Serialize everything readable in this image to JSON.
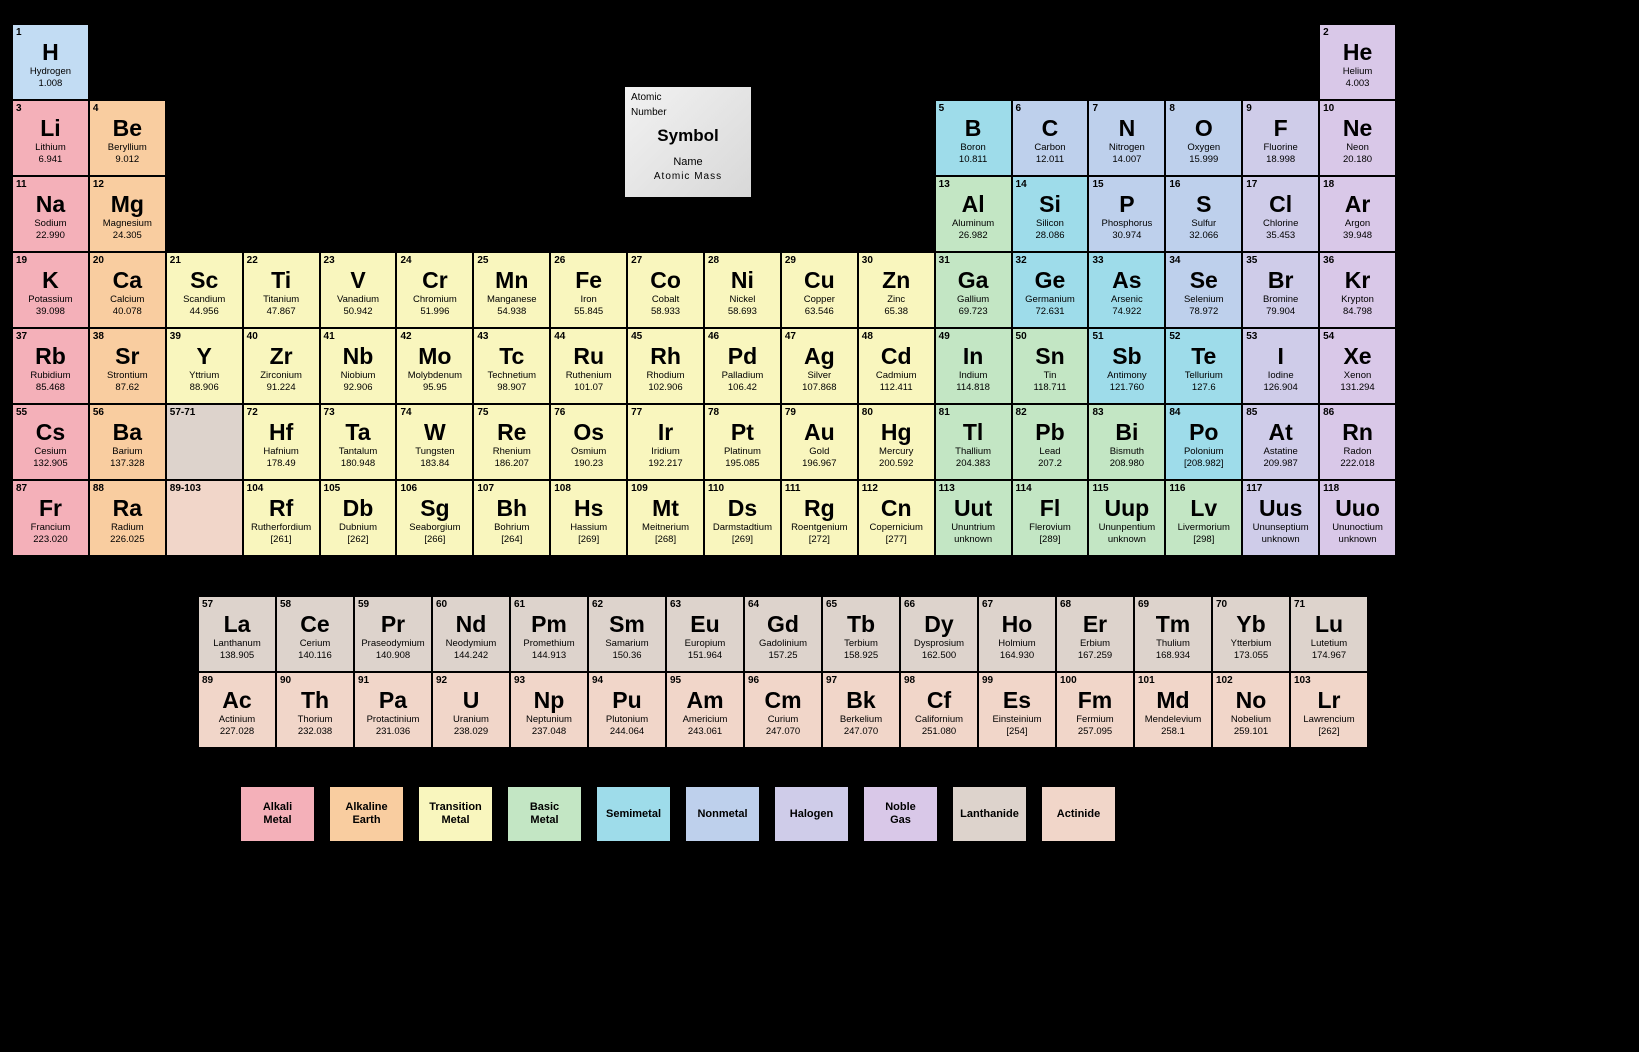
{
  "key_box": {
    "num": "Atomic",
    "num2": "Number",
    "sym": "Symbol",
    "name": "Name",
    "mass": "Atomic  Mass"
  },
  "cell_colors": {
    "diatomic_h": "#c2dcf3",
    "alkali": "#f4b0b9",
    "alkaline": "#f9cda0",
    "transition": "#f9f6be",
    "basic": "#c3e6c4",
    "semimetal": "#9edcea",
    "nonmetal": "#bed0ec",
    "halogen": "#cfcce9",
    "noble": "#d9c8e8",
    "lanthanide": "#ddd3cc",
    "actinide": "#f1d6c9",
    "empty": "transparent"
  },
  "legend": [
    {
      "label": "Alkali\nMetal",
      "cat": "alkali"
    },
    {
      "label": "Alkaline\nEarth",
      "cat": "alkaline"
    },
    {
      "label": "Transition\nMetal",
      "cat": "transition"
    },
    {
      "label": "Basic\nMetal",
      "cat": "basic"
    },
    {
      "label": "Semimetal",
      "cat": "semimetal"
    },
    {
      "label": "Nonmetal",
      "cat": "nonmetal"
    },
    {
      "label": "Halogen",
      "cat": "halogen"
    },
    {
      "label": "Noble\nGas",
      "cat": "noble"
    },
    {
      "label": "Lanthanide",
      "cat": "lanthanide"
    },
    {
      "label": "Actinide",
      "cat": "actinide"
    }
  ],
  "main_rows": [
    [
      {
        "n": "1",
        "s": "H",
        "nm": "Hydrogen",
        "m": "1.008",
        "c": "diatomic_h"
      },
      {
        "c": "empty"
      },
      {
        "c": "empty"
      },
      {
        "c": "empty"
      },
      {
        "c": "empty"
      },
      {
        "c": "empty"
      },
      {
        "c": "empty"
      },
      {
        "c": "empty"
      },
      {
        "c": "empty"
      },
      {
        "c": "empty"
      },
      {
        "c": "empty"
      },
      {
        "c": "empty"
      },
      {
        "c": "empty"
      },
      {
        "c": "empty"
      },
      {
        "c": "empty"
      },
      {
        "c": "empty"
      },
      {
        "c": "empty"
      },
      {
        "n": "2",
        "s": "He",
        "nm": "Helium",
        "m": "4.003",
        "c": "noble"
      }
    ],
    [
      {
        "n": "3",
        "s": "Li",
        "nm": "Lithium",
        "m": "6.941",
        "c": "alkali"
      },
      {
        "n": "4",
        "s": "Be",
        "nm": "Beryllium",
        "m": "9.012",
        "c": "alkaline"
      },
      {
        "c": "empty"
      },
      {
        "c": "empty"
      },
      {
        "c": "empty"
      },
      {
        "c": "empty"
      },
      {
        "c": "empty"
      },
      {
        "c": "empty"
      },
      {
        "c": "empty"
      },
      {
        "c": "empty"
      },
      {
        "c": "empty"
      },
      {
        "c": "empty"
      },
      {
        "n": "5",
        "s": "B",
        "nm": "Boron",
        "m": "10.811",
        "c": "semimetal"
      },
      {
        "n": "6",
        "s": "C",
        "nm": "Carbon",
        "m": "12.011",
        "c": "nonmetal"
      },
      {
        "n": "7",
        "s": "N",
        "nm": "Nitrogen",
        "m": "14.007",
        "c": "nonmetal"
      },
      {
        "n": "8",
        "s": "O",
        "nm": "Oxygen",
        "m": "15.999",
        "c": "nonmetal"
      },
      {
        "n": "9",
        "s": "F",
        "nm": "Fluorine",
        "m": "18.998",
        "c": "halogen"
      },
      {
        "n": "10",
        "s": "Ne",
        "nm": "Neon",
        "m": "20.180",
        "c": "noble"
      }
    ],
    [
      {
        "n": "11",
        "s": "Na",
        "nm": "Sodium",
        "m": "22.990",
        "c": "alkali"
      },
      {
        "n": "12",
        "s": "Mg",
        "nm": "Magnesium",
        "m": "24.305",
        "c": "alkaline"
      },
      {
        "c": "empty"
      },
      {
        "c": "empty"
      },
      {
        "c": "empty"
      },
      {
        "c": "empty"
      },
      {
        "c": "empty"
      },
      {
        "c": "empty"
      },
      {
        "c": "empty"
      },
      {
        "c": "empty"
      },
      {
        "c": "empty"
      },
      {
        "c": "empty"
      },
      {
        "n": "13",
        "s": "Al",
        "nm": "Aluminum",
        "m": "26.982",
        "c": "basic"
      },
      {
        "n": "14",
        "s": "Si",
        "nm": "Silicon",
        "m": "28.086",
        "c": "semimetal"
      },
      {
        "n": "15",
        "s": "P",
        "nm": "Phosphorus",
        "m": "30.974",
        "c": "nonmetal"
      },
      {
        "n": "16",
        "s": "S",
        "nm": "Sulfur",
        "m": "32.066",
        "c": "nonmetal"
      },
      {
        "n": "17",
        "s": "Cl",
        "nm": "Chlorine",
        "m": "35.453",
        "c": "halogen"
      },
      {
        "n": "18",
        "s": "Ar",
        "nm": "Argon",
        "m": "39.948",
        "c": "noble"
      }
    ],
    [
      {
        "n": "19",
        "s": "K",
        "nm": "Potassium",
        "m": "39.098",
        "c": "alkali"
      },
      {
        "n": "20",
        "s": "Ca",
        "nm": "Calcium",
        "m": "40.078",
        "c": "alkaline"
      },
      {
        "n": "21",
        "s": "Sc",
        "nm": "Scandium",
        "m": "44.956",
        "c": "transition"
      },
      {
        "n": "22",
        "s": "Ti",
        "nm": "Titanium",
        "m": "47.867",
        "c": "transition"
      },
      {
        "n": "23",
        "s": "V",
        "nm": "Vanadium",
        "m": "50.942",
        "c": "transition"
      },
      {
        "n": "24",
        "s": "Cr",
        "nm": "Chromium",
        "m": "51.996",
        "c": "transition"
      },
      {
        "n": "25",
        "s": "Mn",
        "nm": "Manganese",
        "m": "54.938",
        "c": "transition"
      },
      {
        "n": "26",
        "s": "Fe",
        "nm": "Iron",
        "m": "55.845",
        "c": "transition"
      },
      {
        "n": "27",
        "s": "Co",
        "nm": "Cobalt",
        "m": "58.933",
        "c": "transition"
      },
      {
        "n": "28",
        "s": "Ni",
        "nm": "Nickel",
        "m": "58.693",
        "c": "transition"
      },
      {
        "n": "29",
        "s": "Cu",
        "nm": "Copper",
        "m": "63.546",
        "c": "transition"
      },
      {
        "n": "30",
        "s": "Zn",
        "nm": "Zinc",
        "m": "65.38",
        "c": "transition"
      },
      {
        "n": "31",
        "s": "Ga",
        "nm": "Gallium",
        "m": "69.723",
        "c": "basic"
      },
      {
        "n": "32",
        "s": "Ge",
        "nm": "Germanium",
        "m": "72.631",
        "c": "semimetal"
      },
      {
        "n": "33",
        "s": "As",
        "nm": "Arsenic",
        "m": "74.922",
        "c": "semimetal"
      },
      {
        "n": "34",
        "s": "Se",
        "nm": "Selenium",
        "m": "78.972",
        "c": "nonmetal"
      },
      {
        "n": "35",
        "s": "Br",
        "nm": "Bromine",
        "m": "79.904",
        "c": "halogen"
      },
      {
        "n": "36",
        "s": "Kr",
        "nm": "Krypton",
        "m": "84.798",
        "c": "noble"
      }
    ],
    [
      {
        "n": "37",
        "s": "Rb",
        "nm": "Rubidium",
        "m": "85.468",
        "c": "alkali"
      },
      {
        "n": "38",
        "s": "Sr",
        "nm": "Strontium",
        "m": "87.62",
        "c": "alkaline"
      },
      {
        "n": "39",
        "s": "Y",
        "nm": "Yttrium",
        "m": "88.906",
        "c": "transition"
      },
      {
        "n": "40",
        "s": "Zr",
        "nm": "Zirconium",
        "m": "91.224",
        "c": "transition"
      },
      {
        "n": "41",
        "s": "Nb",
        "nm": "Niobium",
        "m": "92.906",
        "c": "transition"
      },
      {
        "n": "42",
        "s": "Mo",
        "nm": "Molybdenum",
        "m": "95.95",
        "c": "transition"
      },
      {
        "n": "43",
        "s": "Tc",
        "nm": "Technetium",
        "m": "98.907",
        "c": "transition"
      },
      {
        "n": "44",
        "s": "Ru",
        "nm": "Ruthenium",
        "m": "101.07",
        "c": "transition"
      },
      {
        "n": "45",
        "s": "Rh",
        "nm": "Rhodium",
        "m": "102.906",
        "c": "transition"
      },
      {
        "n": "46",
        "s": "Pd",
        "nm": "Palladium",
        "m": "106.42",
        "c": "transition"
      },
      {
        "n": "47",
        "s": "Ag",
        "nm": "Silver",
        "m": "107.868",
        "c": "transition"
      },
      {
        "n": "48",
        "s": "Cd",
        "nm": "Cadmium",
        "m": "112.411",
        "c": "transition"
      },
      {
        "n": "49",
        "s": "In",
        "nm": "Indium",
        "m": "114.818",
        "c": "basic"
      },
      {
        "n": "50",
        "s": "Sn",
        "nm": "Tin",
        "m": "118.711",
        "c": "basic"
      },
      {
        "n": "51",
        "s": "Sb",
        "nm": "Antimony",
        "m": "121.760",
        "c": "semimetal"
      },
      {
        "n": "52",
        "s": "Te",
        "nm": "Tellurium",
        "m": "127.6",
        "c": "semimetal"
      },
      {
        "n": "53",
        "s": "I",
        "nm": "Iodine",
        "m": "126.904",
        "c": "halogen"
      },
      {
        "n": "54",
        "s": "Xe",
        "nm": "Xenon",
        "m": "131.294",
        "c": "noble"
      }
    ],
    [
      {
        "n": "55",
        "s": "Cs",
        "nm": "Cesium",
        "m": "132.905",
        "c": "alkali"
      },
      {
        "n": "56",
        "s": "Ba",
        "nm": "Barium",
        "m": "137.328",
        "c": "alkaline"
      },
      {
        "n": "57-71",
        "s": "",
        "nm": "",
        "m": "",
        "c": "lanthanide"
      },
      {
        "n": "72",
        "s": "Hf",
        "nm": "Hafnium",
        "m": "178.49",
        "c": "transition"
      },
      {
        "n": "73",
        "s": "Ta",
        "nm": "Tantalum",
        "m": "180.948",
        "c": "transition"
      },
      {
        "n": "74",
        "s": "W",
        "nm": "Tungsten",
        "m": "183.84",
        "c": "transition"
      },
      {
        "n": "75",
        "s": "Re",
        "nm": "Rhenium",
        "m": "186.207",
        "c": "transition"
      },
      {
        "n": "76",
        "s": "Os",
        "nm": "Osmium",
        "m": "190.23",
        "c": "transition"
      },
      {
        "n": "77",
        "s": "Ir",
        "nm": "Iridium",
        "m": "192.217",
        "c": "transition"
      },
      {
        "n": "78",
        "s": "Pt",
        "nm": "Platinum",
        "m": "195.085",
        "c": "transition"
      },
      {
        "n": "79",
        "s": "Au",
        "nm": "Gold",
        "m": "196.967",
        "c": "transition"
      },
      {
        "n": "80",
        "s": "Hg",
        "nm": "Mercury",
        "m": "200.592",
        "c": "transition"
      },
      {
        "n": "81",
        "s": "Tl",
        "nm": "Thallium",
        "m": "204.383",
        "c": "basic"
      },
      {
        "n": "82",
        "s": "Pb",
        "nm": "Lead",
        "m": "207.2",
        "c": "basic"
      },
      {
        "n": "83",
        "s": "Bi",
        "nm": "Bismuth",
        "m": "208.980",
        "c": "basic"
      },
      {
        "n": "84",
        "s": "Po",
        "nm": "Polonium",
        "m": "[208.982]",
        "c": "semimetal"
      },
      {
        "n": "85",
        "s": "At",
        "nm": "Astatine",
        "m": "209.987",
        "c": "halogen"
      },
      {
        "n": "86",
        "s": "Rn",
        "nm": "Radon",
        "m": "222.018",
        "c": "noble"
      }
    ],
    [
      {
        "n": "87",
        "s": "Fr",
        "nm": "Francium",
        "m": "223.020",
        "c": "alkali"
      },
      {
        "n": "88",
        "s": "Ra",
        "nm": "Radium",
        "m": "226.025",
        "c": "alkaline"
      },
      {
        "n": "89-103",
        "s": "",
        "nm": "",
        "m": "",
        "c": "actinide"
      },
      {
        "n": "104",
        "s": "Rf",
        "nm": "Rutherfordium",
        "m": "[261]",
        "c": "transition"
      },
      {
        "n": "105",
        "s": "Db",
        "nm": "Dubnium",
        "m": "[262]",
        "c": "transition"
      },
      {
        "n": "106",
        "s": "Sg",
        "nm": "Seaborgium",
        "m": "[266]",
        "c": "transition"
      },
      {
        "n": "107",
        "s": "Bh",
        "nm": "Bohrium",
        "m": "[264]",
        "c": "transition"
      },
      {
        "n": "108",
        "s": "Hs",
        "nm": "Hassium",
        "m": "[269]",
        "c": "transition"
      },
      {
        "n": "109",
        "s": "Mt",
        "nm": "Meitnerium",
        "m": "[268]",
        "c": "transition"
      },
      {
        "n": "110",
        "s": "Ds",
        "nm": "Darmstadtium",
        "m": "[269]",
        "c": "transition"
      },
      {
        "n": "111",
        "s": "Rg",
        "nm": "Roentgenium",
        "m": "[272]",
        "c": "transition"
      },
      {
        "n": "112",
        "s": "Cn",
        "nm": "Copernicium",
        "m": "[277]",
        "c": "transition"
      },
      {
        "n": "113",
        "s": "Uut",
        "nm": "Ununtrium",
        "m": "unknown",
        "c": "basic"
      },
      {
        "n": "114",
        "s": "Fl",
        "nm": "Flerovium",
        "m": "[289]",
        "c": "basic"
      },
      {
        "n": "115",
        "s": "Uup",
        "nm": "Ununpentium",
        "m": "unknown",
        "c": "basic"
      },
      {
        "n": "116",
        "s": "Lv",
        "nm": "Livermorium",
        "m": "[298]",
        "c": "basic"
      },
      {
        "n": "117",
        "s": "Uus",
        "nm": "Ununseptium",
        "m": "unknown",
        "c": "halogen"
      },
      {
        "n": "118",
        "s": "Uuo",
        "nm": "Ununoctium",
        "m": "unknown",
        "c": "noble"
      }
    ]
  ],
  "fblock_rows": [
    [
      {
        "n": "57",
        "s": "La",
        "nm": "Lanthanum",
        "m": "138.905",
        "c": "lanthanide"
      },
      {
        "n": "58",
        "s": "Ce",
        "nm": "Cerium",
        "m": "140.116",
        "c": "lanthanide"
      },
      {
        "n": "59",
        "s": "Pr",
        "nm": "Praseodymium",
        "m": "140.908",
        "c": "lanthanide"
      },
      {
        "n": "60",
        "s": "Nd",
        "nm": "Neodymium",
        "m": "144.242",
        "c": "lanthanide"
      },
      {
        "n": "61",
        "s": "Pm",
        "nm": "Promethium",
        "m": "144.913",
        "c": "lanthanide"
      },
      {
        "n": "62",
        "s": "Sm",
        "nm": "Samarium",
        "m": "150.36",
        "c": "lanthanide"
      },
      {
        "n": "63",
        "s": "Eu",
        "nm": "Europium",
        "m": "151.964",
        "c": "lanthanide"
      },
      {
        "n": "64",
        "s": "Gd",
        "nm": "Gadolinium",
        "m": "157.25",
        "c": "lanthanide"
      },
      {
        "n": "65",
        "s": "Tb",
        "nm": "Terbium",
        "m": "158.925",
        "c": "lanthanide"
      },
      {
        "n": "66",
        "s": "Dy",
        "nm": "Dysprosium",
        "m": "162.500",
        "c": "lanthanide"
      },
      {
        "n": "67",
        "s": "Ho",
        "nm": "Holmium",
        "m": "164.930",
        "c": "lanthanide"
      },
      {
        "n": "68",
        "s": "Er",
        "nm": "Erbium",
        "m": "167.259",
        "c": "lanthanide"
      },
      {
        "n": "69",
        "s": "Tm",
        "nm": "Thulium",
        "m": "168.934",
        "c": "lanthanide"
      },
      {
        "n": "70",
        "s": "Yb",
        "nm": "Ytterbium",
        "m": "173.055",
        "c": "lanthanide"
      },
      {
        "n": "71",
        "s": "Lu",
        "nm": "Lutetium",
        "m": "174.967",
        "c": "lanthanide"
      }
    ],
    [
      {
        "n": "89",
        "s": "Ac",
        "nm": "Actinium",
        "m": "227.028",
        "c": "actinide"
      },
      {
        "n": "90",
        "s": "Th",
        "nm": "Thorium",
        "m": "232.038",
        "c": "actinide"
      },
      {
        "n": "91",
        "s": "Pa",
        "nm": "Protactinium",
        "m": "231.036",
        "c": "actinide"
      },
      {
        "n": "92",
        "s": "U",
        "nm": "Uranium",
        "m": "238.029",
        "c": "actinide"
      },
      {
        "n": "93",
        "s": "Np",
        "nm": "Neptunium",
        "m": "237.048",
        "c": "actinide"
      },
      {
        "n": "94",
        "s": "Pu",
        "nm": "Plutonium",
        "m": "244.064",
        "c": "actinide"
      },
      {
        "n": "95",
        "s": "Am",
        "nm": "Americium",
        "m": "243.061",
        "c": "actinide"
      },
      {
        "n": "96",
        "s": "Cm",
        "nm": "Curium",
        "m": "247.070",
        "c": "actinide"
      },
      {
        "n": "97",
        "s": "Bk",
        "nm": "Berkelium",
        "m": "247.070",
        "c": "actinide"
      },
      {
        "n": "98",
        "s": "Cf",
        "nm": "Californium",
        "m": "251.080",
        "c": "actinide"
      },
      {
        "n": "99",
        "s": "Es",
        "nm": "Einsteinium",
        "m": "[254]",
        "c": "actinide"
      },
      {
        "n": "100",
        "s": "Fm",
        "nm": "Fermium",
        "m": "257.095",
        "c": "actinide"
      },
      {
        "n": "101",
        "s": "Md",
        "nm": "Mendelevium",
        "m": "258.1",
        "c": "actinide"
      },
      {
        "n": "102",
        "s": "No",
        "nm": "Nobelium",
        "m": "259.101",
        "c": "actinide"
      },
      {
        "n": "103",
        "s": "Lr",
        "nm": "Lawrencium",
        "m": "[262]",
        "c": "actinide"
      }
    ]
  ]
}
